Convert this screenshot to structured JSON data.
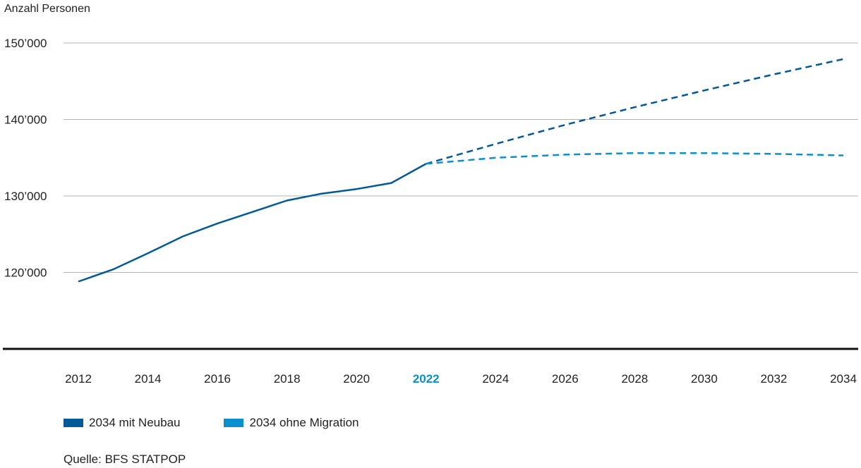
{
  "chart_data": {
    "type": "line",
    "ylabel": "Anzahl Personen",
    "ylim": [
      110000,
      150000
    ],
    "yticks": [
      120000,
      130000,
      140000,
      150000
    ],
    "ytick_labels": [
      "120’000",
      "130’000",
      "140’000",
      "150’000"
    ],
    "xlim": [
      2012,
      2034
    ],
    "xticks": [
      2012,
      2014,
      2016,
      2018,
      2020,
      2022,
      2024,
      2026,
      2028,
      2030,
      2032,
      2034
    ],
    "xtick_labels": [
      "2012",
      "2014",
      "2016",
      "2018",
      "2020",
      "2022",
      "2024",
      "2026",
      "2028",
      "2030",
      "2032",
      "2034"
    ],
    "highlight_tick": "2022",
    "highlight_color": "#0b8fcf",
    "historical": {
      "color": "#005a98",
      "x": [
        2012,
        2013,
        2014,
        2015,
        2016,
        2017,
        2018,
        2019,
        2020,
        2021,
        2022
      ],
      "values": [
        118800,
        120400,
        122500,
        124700,
        126400,
        127900,
        129400,
        130300,
        130900,
        131700,
        134200
      ]
    },
    "series": [
      {
        "name": "2034 mit Neubau",
        "color": "#005a98",
        "dashed": true,
        "x": [
          2022,
          2024,
          2026,
          2028,
          2030,
          2032,
          2034
        ],
        "values": [
          134200,
          136800,
          139300,
          141600,
          143800,
          145900,
          147900
        ]
      },
      {
        "name": "2034 ohne Migration",
        "color": "#0b8fcf",
        "dashed": true,
        "x": [
          2022,
          2024,
          2026,
          2028,
          2030,
          2032,
          2034
        ],
        "values": [
          134200,
          135000,
          135400,
          135600,
          135600,
          135500,
          135300
        ]
      }
    ],
    "legend_position": "bottom-left"
  },
  "source": "Quelle: BFS STATPOP"
}
